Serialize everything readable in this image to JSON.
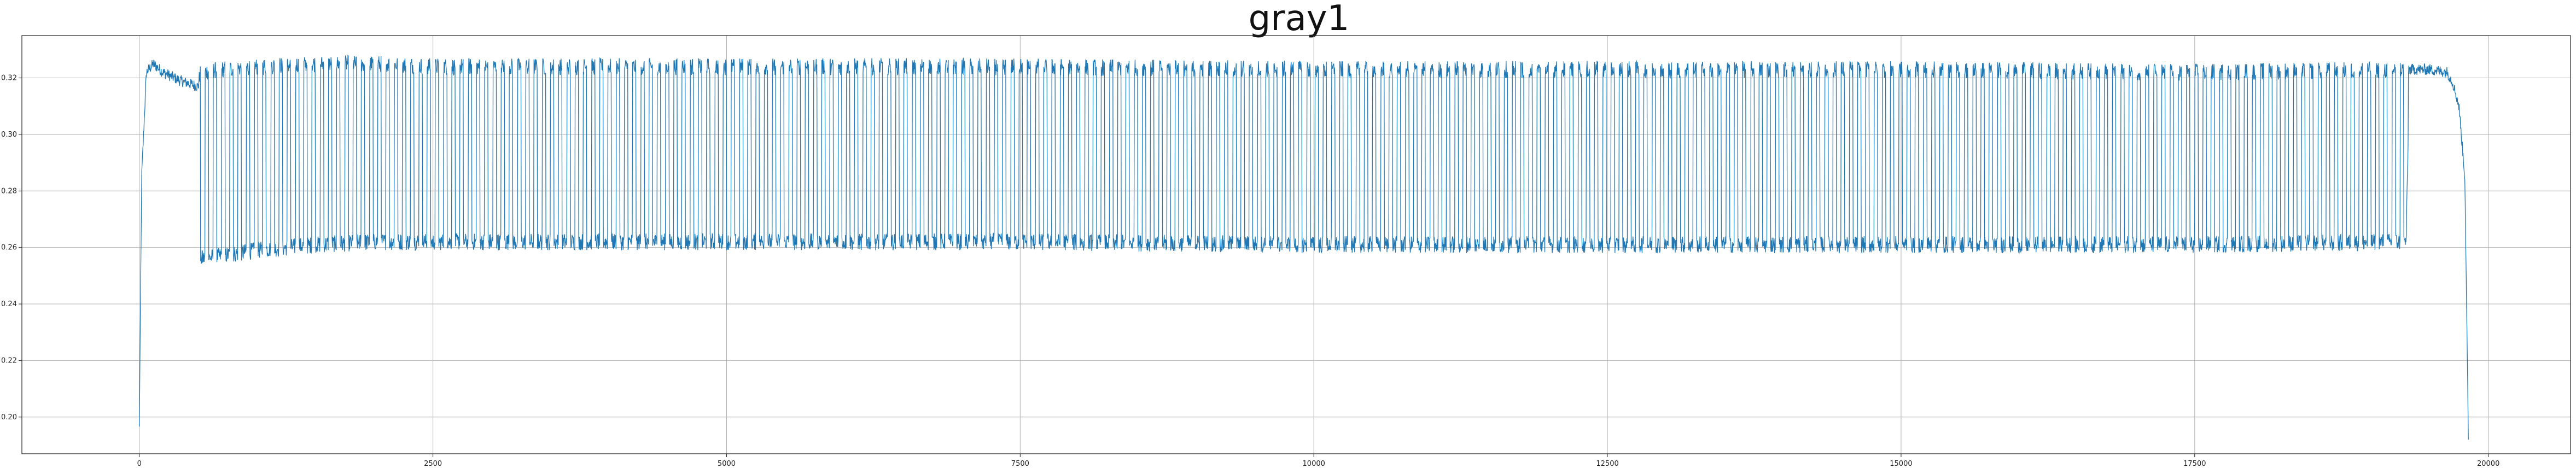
{
  "chart_data": {
    "type": "line",
    "title": "gray1",
    "xlabel": "",
    "ylabel": "",
    "xlim": [
      -1000,
      20700
    ],
    "ylim": [
      0.187,
      0.335
    ],
    "x_ticks": [
      0,
      2500,
      5000,
      7500,
      10000,
      12500,
      15000,
      17500,
      20000
    ],
    "x_tick_labels": [
      "0",
      "2500",
      "5000",
      "7500",
      "10000",
      "12500",
      "15000",
      "17500",
      "20000"
    ],
    "y_ticks": [
      0.2,
      0.22,
      0.24,
      0.26,
      0.28,
      0.3,
      0.32
    ],
    "y_tick_labels": [
      "0.20",
      "0.22",
      "0.24",
      "0.26",
      "0.28",
      "0.30",
      "0.32"
    ],
    "grid": true,
    "line_color": "#1f77b4",
    "series": [
      {
        "x": [
          0,
          20,
          60,
          120,
          200,
          350,
          500,
          520,
          700,
          1000,
          1500,
          2000,
          2500,
          3000,
          5000,
          7500,
          10000,
          12500,
          15000,
          17500,
          19300,
          19330,
          19500,
          19650,
          19700,
          19750,
          19800,
          19830
        ],
        "upper": [
          0.196,
          0.285,
          0.322,
          0.325,
          0.322,
          0.319,
          0.317,
          0.322,
          0.323,
          0.324,
          0.325,
          0.325,
          0.324,
          0.324,
          0.324,
          0.324,
          0.323,
          0.323,
          0.323,
          0.322,
          0.323,
          0.323,
          0.323,
          0.322,
          0.318,
          0.31,
          0.285,
          0.193
        ],
        "lower": [
          0.196,
          0.285,
          0.322,
          0.325,
          0.322,
          0.319,
          0.317,
          0.256,
          0.257,
          0.259,
          0.261,
          0.262,
          0.262,
          0.262,
          0.262,
          0.262,
          0.261,
          0.261,
          0.261,
          0.261,
          0.262,
          0.322,
          0.321,
          0.319,
          0.318,
          0.31,
          0.285,
          0.193
        ]
      }
    ]
  }
}
